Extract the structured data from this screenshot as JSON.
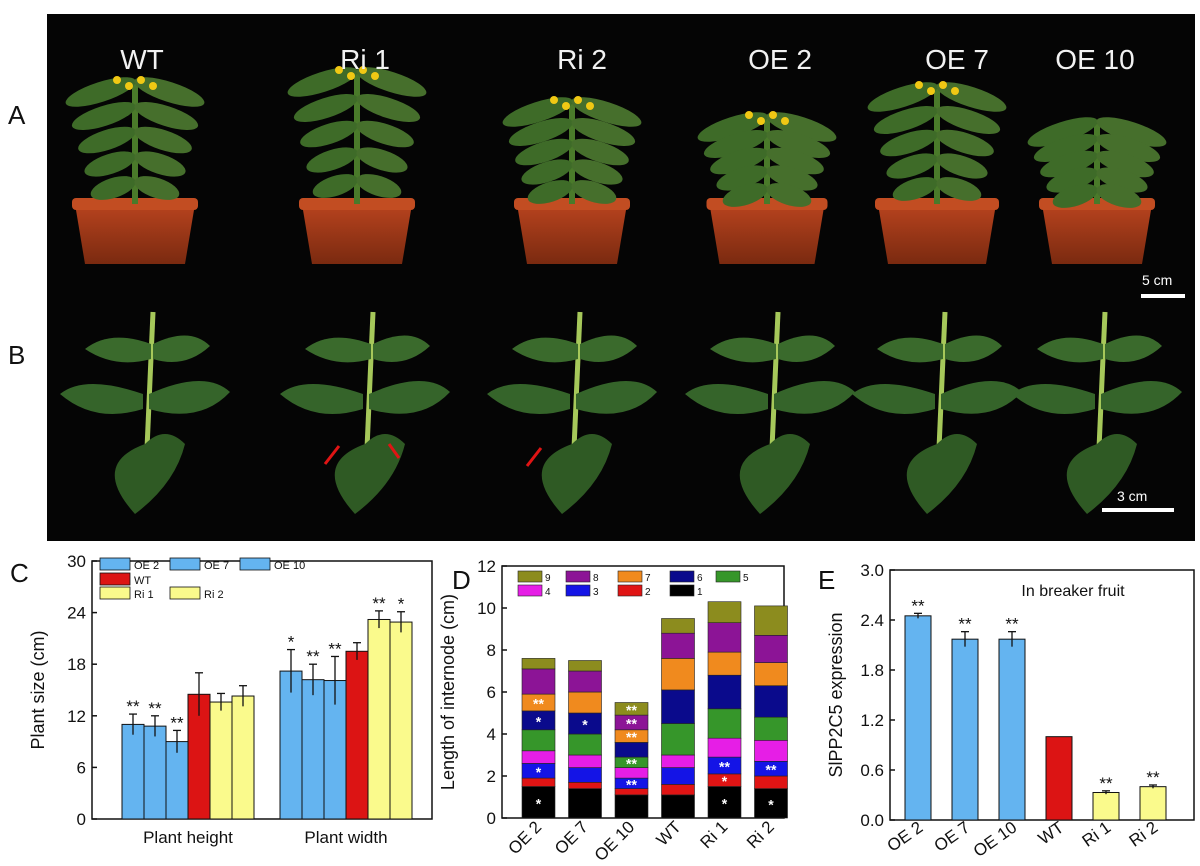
{
  "panels": {
    "A": "A",
    "B": "B",
    "C": "C",
    "D": "D",
    "E": "E"
  },
  "photo": {
    "genotypes": [
      "WT",
      "Ri 1",
      "Ri 2",
      "OE 2",
      "OE 7",
      "OE 10"
    ],
    "scale_A": "5 cm",
    "scale_B": "3 cm"
  },
  "colors": {
    "oe": "#64b4f0",
    "wt": "#dc1414",
    "ri": "#fafa8c",
    "axis": "#111111"
  },
  "chart_data": [
    {
      "id": "C",
      "type": "bar",
      "ylabel": "Plant size (cm)",
      "ylim": [
        0,
        30
      ],
      "yticks": [
        0,
        6,
        12,
        18,
        24,
        30
      ],
      "categories": [
        "Plant height",
        "Plant width"
      ],
      "series": [
        {
          "name": "OE 2",
          "values": [
            11.0,
            17.2
          ],
          "errors": [
            1.2,
            2.5
          ],
          "sig": [
            "**",
            "*"
          ]
        },
        {
          "name": "OE 7",
          "values": [
            10.8,
            16.2
          ],
          "errors": [
            1.2,
            1.8
          ],
          "sig": [
            "**",
            "**"
          ]
        },
        {
          "name": "OE 10",
          "values": [
            9.0,
            16.1
          ],
          "errors": [
            1.3,
            2.8
          ],
          "sig": [
            "**",
            "**"
          ]
        },
        {
          "name": "WT",
          "values": [
            14.5,
            19.5
          ],
          "errors": [
            2.5,
            1.0
          ],
          "sig": [
            "",
            ""
          ]
        },
        {
          "name": "Ri 1",
          "values": [
            13.6,
            23.2
          ],
          "errors": [
            1.0,
            1.0
          ],
          "sig": [
            "",
            "**"
          ]
        },
        {
          "name": "Ri 2",
          "values": [
            14.3,
            22.9
          ],
          "errors": [
            1.2,
            1.2
          ],
          "sig": [
            "",
            "*"
          ]
        }
      ]
    },
    {
      "id": "D",
      "type": "bar",
      "stacked": true,
      "ylabel": "Length of  internode (cm)",
      "ylim": [
        0,
        12
      ],
      "yticks": [
        0,
        2,
        4,
        6,
        8,
        10,
        12
      ],
      "categories": [
        "OE 2",
        "OE 7",
        "OE 10",
        "WT",
        "Ri 1",
        "Ri 2"
      ],
      "internodes": [
        "1",
        "2",
        "3",
        "4",
        "5",
        "6",
        "7",
        "8",
        "9"
      ],
      "internode_colors": [
        "#000000",
        "#e01414",
        "#1414e6",
        "#e61ee6",
        "#36962a",
        "#0a0a8c",
        "#f08a1e",
        "#8c1496",
        "#8c8c1e"
      ],
      "legend_order": [
        "9",
        "8",
        "7",
        "6",
        "5",
        "4",
        "3",
        "2",
        "1"
      ],
      "values": [
        [
          1.5,
          0.4,
          0.7,
          0.6,
          1.0,
          0.9,
          0.8,
          1.2,
          0.5
        ],
        [
          1.4,
          0.3,
          0.7,
          0.6,
          1.0,
          1.0,
          1.0,
          1.0,
          0.5
        ],
        [
          1.1,
          0.3,
          0.5,
          0.5,
          0.5,
          0.7,
          0.6,
          0.7,
          0.6
        ],
        [
          1.1,
          0.5,
          0.8,
          0.6,
          1.5,
          1.6,
          1.5,
          1.2,
          0.7
        ],
        [
          1.5,
          0.6,
          0.8,
          0.9,
          1.4,
          1.6,
          1.1,
          1.4,
          1.0
        ],
        [
          1.4,
          0.6,
          0.7,
          1.0,
          1.1,
          1.5,
          1.1,
          1.3,
          1.4
        ]
      ],
      "labels": [
        {
          "bar": 0,
          "segment": 0,
          "text": "*",
          "color": "#ffffff"
        },
        {
          "bar": 0,
          "segment": 2,
          "text": "*",
          "color": "#ffffff"
        },
        {
          "bar": 0,
          "segment": 5,
          "text": "*",
          "color": "#ffffff"
        },
        {
          "bar": 0,
          "segment": 6,
          "text": "**",
          "color": "#ffffff"
        },
        {
          "bar": 1,
          "segment": 5,
          "text": "*",
          "color": "#ffffff"
        },
        {
          "bar": 2,
          "segment": 2,
          "text": "**",
          "color": "#ffffff"
        },
        {
          "bar": 2,
          "segment": 4,
          "text": "**",
          "color": "#ffffff"
        },
        {
          "bar": 2,
          "segment": 6,
          "text": "**",
          "color": "#ffffff"
        },
        {
          "bar": 2,
          "segment": 7,
          "text": "**",
          "color": "#ffffff"
        },
        {
          "bar": 2,
          "segment": 8,
          "text": "**",
          "color": "#ffffff"
        },
        {
          "bar": 4,
          "segment": 0,
          "text": "*",
          "color": "#ffffff"
        },
        {
          "bar": 4,
          "segment": 1,
          "text": "*",
          "color": "#ffffff"
        },
        {
          "bar": 4,
          "segment": 2,
          "text": "**",
          "color": "#ffffff"
        },
        {
          "bar": 5,
          "segment": 0,
          "text": "*",
          "color": "#ffffff"
        },
        {
          "bar": 5,
          "segment": 2,
          "text": "**",
          "color": "#ffffff"
        }
      ]
    },
    {
      "id": "E",
      "type": "bar",
      "title": "In breaker fruit",
      "ylabel": "SlPP2C5 expression",
      "ylim": [
        0,
        3.0
      ],
      "yticks": [
        "0.0",
        "0.6",
        "1.2",
        "1.8",
        "2.4",
        "3.0"
      ],
      "categories": [
        "OE 2",
        "OE 7",
        "OE 10",
        "WT",
        "Ri 1",
        "Ri 2"
      ],
      "values": [
        2.45,
        2.17,
        2.17,
        1.0,
        0.33,
        0.4
      ],
      "errors": [
        0.03,
        0.09,
        0.09,
        0.0,
        0.02,
        0.02
      ],
      "sig": [
        "**",
        "**",
        "**",
        "",
        "**",
        "**"
      ]
    }
  ]
}
